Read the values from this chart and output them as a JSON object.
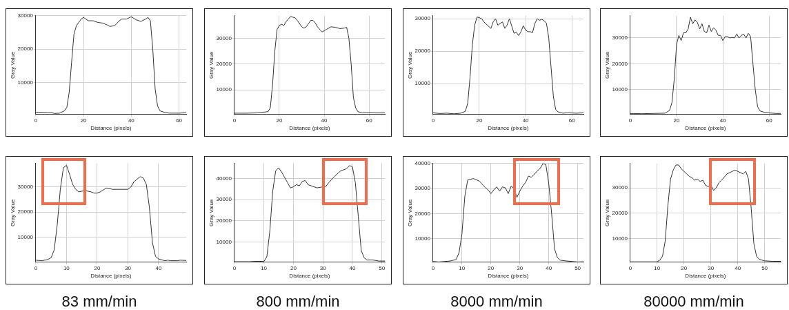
{
  "chart_data": [
    {
      "type": "line",
      "xlabel": "Distance (pixels)",
      "ylabel": "Gray Value",
      "color": "#333333",
      "marker": "none",
      "grid": true,
      "xlim": [
        0,
        63
      ],
      "ylim": [
        400,
        30000
      ],
      "xticks": [
        0,
        20,
        40,
        60
      ],
      "yticks": [
        10000,
        20000,
        30000
      ],
      "x": [
        0,
        3,
        5,
        6,
        8,
        10,
        12,
        13,
        14,
        15,
        16,
        17,
        18,
        19,
        20,
        22,
        24,
        26,
        28,
        30,
        31,
        33,
        35,
        36,
        38,
        40,
        42,
        44,
        46,
        47,
        48,
        49,
        50,
        51,
        52,
        54,
        56,
        60,
        63
      ],
      "values": [
        1000,
        1100,
        900,
        1000,
        700,
        800,
        1500,
        2500,
        7000,
        16000,
        24500,
        27000,
        28000,
        29000,
        29500,
        28500,
        28500,
        28000,
        27800,
        27200,
        26800,
        27000,
        28500,
        29000,
        29000,
        29700,
        28800,
        28300,
        29000,
        29500,
        28500,
        20000,
        8000,
        3000,
        1500,
        1000,
        800,
        800,
        900
      ]
    },
    {
      "type": "line",
      "xlabel": "Distance (pixels)",
      "ylabel": "Gray Value",
      "color": "#333333",
      "marker": "none",
      "grid": true,
      "xlim": [
        0,
        67
      ],
      "ylim": [
        400,
        38800
      ],
      "xticks": [
        0,
        20,
        40,
        60
      ],
      "yticks": [
        10000,
        20000,
        30000
      ],
      "x": [
        0,
        5,
        10,
        15,
        16,
        17,
        18,
        19,
        20,
        21,
        22,
        23,
        25,
        27,
        28,
        30,
        31,
        32,
        34,
        35,
        36,
        37,
        39,
        41,
        43,
        45,
        47,
        49,
        50,
        51,
        52,
        53,
        54,
        55,
        57,
        60,
        63,
        67
      ],
      "values": [
        900,
        900,
        1000,
        1500,
        3000,
        12000,
        25000,
        33500,
        35000,
        35500,
        35000,
        36500,
        38500,
        38000,
        37000,
        34500,
        34000,
        34500,
        37000,
        37000,
        36000,
        34500,
        32500,
        33500,
        34500,
        34300,
        33800,
        34000,
        34300,
        30000,
        20000,
        7000,
        3000,
        1500,
        1000,
        1100,
        1000,
        1000
      ]
    },
    {
      "type": "line",
      "xlabel": "Distance (pixels)",
      "ylabel": "Gray Value",
      "color": "#333333",
      "marker": "none",
      "grid": true,
      "xlim": [
        0,
        65
      ],
      "ylim": [
        500,
        30900
      ],
      "xticks": [
        0,
        20,
        40,
        60
      ],
      "yticks": [
        10000,
        20000,
        30000
      ],
      "x": [
        0,
        3,
        6,
        9,
        12,
        14,
        15,
        16,
        17,
        18,
        19,
        20,
        21,
        22,
        25,
        26,
        27,
        28,
        30,
        31,
        32,
        33,
        35,
        36,
        37,
        38,
        39,
        40,
        41,
        42,
        43,
        44,
        45,
        46,
        47,
        48,
        49,
        50,
        51,
        52,
        53,
        54,
        56,
        58,
        62,
        65
      ],
      "values": [
        1000,
        800,
        900,
        700,
        900,
        1500,
        4000,
        12000,
        22000,
        28000,
        30500,
        30300,
        30000,
        29000,
        27000,
        29000,
        30000,
        28000,
        29000,
        27000,
        28000,
        30000,
        25500,
        25800,
        24800,
        26000,
        27800,
        26500,
        26000,
        26000,
        25700,
        28500,
        30000,
        29500,
        29800,
        29300,
        28600,
        24000,
        15000,
        6000,
        2000,
        1300,
        900,
        1000,
        900,
        1000
      ]
    },
    {
      "type": "line",
      "xlabel": "Distance (pixels)",
      "ylabel": "Gray Value",
      "color": "#333333",
      "marker": "none",
      "grid": true,
      "xlim": [
        0,
        65
      ],
      "ylim": [
        400,
        38600
      ],
      "xticks": [
        0,
        20,
        40,
        60
      ],
      "yticks": [
        10000,
        20000,
        30000
      ],
      "x": [
        0,
        5,
        10,
        15,
        17,
        18,
        19,
        20,
        21,
        22,
        23,
        24,
        25,
        26,
        27,
        28,
        29,
        30,
        31,
        32,
        33,
        34,
        35,
        36,
        37,
        38,
        39,
        40,
        41,
        42,
        43,
        44,
        45,
        46,
        47,
        48,
        49,
        50,
        51,
        52,
        53,
        54,
        55,
        56,
        58,
        60,
        63,
        65
      ],
      "values": [
        800,
        700,
        800,
        900,
        2000,
        5000,
        14000,
        27500,
        31000,
        29000,
        32000,
        32000,
        33500,
        38000,
        35500,
        37000,
        36000,
        33500,
        35500,
        32500,
        32000,
        35000,
        32500,
        34000,
        33000,
        31000,
        31000,
        29000,
        30500,
        30500,
        30000,
        30200,
        30000,
        31500,
        30000,
        31000,
        31500,
        30000,
        31800,
        30500,
        20000,
        10000,
        3500,
        1800,
        1200,
        1000,
        800,
        800
      ]
    },
    {
      "type": "line",
      "xlabel": "Distance (pixels)",
      "ylabel": "Gray Value",
      "color": "#333333",
      "marker": "none",
      "grid": true,
      "xlim": [
        0,
        49
      ],
      "ylim": [
        200,
        39200
      ],
      "xticks": [
        0,
        10,
        20,
        30,
        40
      ],
      "yticks": [
        10000,
        20000,
        30000
      ],
      "annotations": [
        "83 mm/min"
      ],
      "x": [
        0,
        2,
        4,
        5,
        6,
        7,
        8,
        9,
        10,
        11,
        12,
        13,
        14,
        16,
        18,
        19,
        20,
        21,
        23,
        25,
        27,
        29,
        30,
        31,
        32,
        33,
        34,
        35,
        36,
        37,
        38,
        39,
        40,
        42,
        43,
        44,
        46,
        47,
        49
      ],
      "values": [
        1000,
        800,
        1300,
        2000,
        5000,
        15000,
        29000,
        37500,
        38500,
        35000,
        31000,
        29000,
        28000,
        28500,
        28000,
        27500,
        27500,
        28000,
        29500,
        29000,
        29000,
        29000,
        29000,
        30000,
        32000,
        33000,
        34000,
        33500,
        31000,
        22000,
        8000,
        2500,
        1500,
        800,
        1000,
        800,
        800,
        1000,
        900
      ]
    },
    {
      "type": "line",
      "xlabel": "Distance (pixels)",
      "ylabel": "Gray Value",
      "color": "#333333",
      "marker": "none",
      "grid": true,
      "xlim": [
        0,
        51
      ],
      "ylim": [
        450,
        47000
      ],
      "xticks": [
        0,
        10,
        20,
        30,
        40,
        50
      ],
      "yticks": [
        10000,
        20000,
        30000,
        40000
      ],
      "annotations": [
        "800 mm/min"
      ],
      "x": [
        0,
        5,
        8,
        10,
        11,
        12,
        13,
        14,
        15,
        16,
        17,
        18,
        19,
        20,
        21,
        22,
        23,
        24,
        25,
        26,
        28,
        30,
        31,
        32,
        34,
        36,
        38,
        39,
        40,
        41,
        42,
        43,
        44,
        45,
        47,
        49,
        51
      ],
      "values": [
        700,
        700,
        900,
        800,
        3000,
        15000,
        34000,
        43500,
        45000,
        43000,
        40500,
        38000,
        35500,
        36000,
        37000,
        36500,
        38500,
        39000,
        37000,
        36500,
        35500,
        36000,
        36200,
        38000,
        41000,
        43500,
        44500,
        46000,
        45500,
        38000,
        22000,
        6000,
        2500,
        1500,
        1500,
        1000,
        1000
      ]
    },
    {
      "type": "line",
      "xlabel": "Distance (pixels)",
      "ylabel": "Gray Value",
      "color": "#333333",
      "marker": "none",
      "grid": true,
      "xlim": [
        0,
        52
      ],
      "ylim": [
        700,
        40000
      ],
      "xticks": [
        0,
        10,
        20,
        30,
        40,
        50
      ],
      "yticks": [
        10000,
        20000,
        30000,
        40000
      ],
      "annotations": [
        "8000 mm/min"
      ],
      "x": [
        0,
        2,
        4,
        6,
        8,
        9,
        10,
        11,
        12,
        14,
        16,
        18,
        19,
        20,
        21,
        22,
        23,
        24,
        25,
        26,
        27,
        28,
        29,
        30,
        31,
        32,
        33,
        34,
        36,
        37,
        38,
        39,
        40,
        41,
        42,
        43,
        44,
        46,
        48,
        50,
        52
      ],
      "values": [
        1000,
        800,
        1000,
        1200,
        1800,
        4500,
        12000,
        27000,
        33500,
        34000,
        33000,
        30500,
        29500,
        28000,
        29500,
        30700,
        29000,
        30700,
        30300,
        28000,
        31000,
        30000,
        26500,
        29000,
        31000,
        32500,
        35000,
        34500,
        37000,
        38000,
        40000,
        39500,
        32000,
        20000,
        6000,
        2500,
        1500,
        1200,
        1000,
        800,
        900
      ]
    },
    {
      "type": "line",
      "xlabel": "Distance (pixels)",
      "ylabel": "Gray Value",
      "color": "#333333",
      "marker": "none",
      "grid": true,
      "xlim": [
        0,
        56
      ],
      "ylim": [
        650,
        39600
      ],
      "xticks": [
        0,
        10,
        20,
        30,
        40,
        50
      ],
      "yticks": [
        10000,
        20000,
        30000
      ],
      "annotations": [
        "80000 mm/min"
      ],
      "x": [
        0,
        5,
        10,
        11,
        12,
        13,
        14,
        15,
        16,
        17,
        18,
        19,
        20,
        21,
        22,
        23,
        24,
        25,
        26,
        27,
        28,
        29,
        30,
        31,
        32,
        33,
        34,
        36,
        38,
        39,
        40,
        41,
        42,
        43,
        44,
        45,
        46,
        47,
        48,
        50,
        53,
        56
      ],
      "values": [
        800,
        800,
        800,
        1500,
        3000,
        9000,
        23000,
        33500,
        37000,
        39000,
        39000,
        37500,
        36500,
        35500,
        34500,
        34000,
        33000,
        33500,
        32500,
        33000,
        31000,
        30500,
        31000,
        29000,
        30000,
        32000,
        33000,
        35500,
        36500,
        37000,
        36500,
        36000,
        35500,
        36500,
        33500,
        22000,
        8000,
        3000,
        1800,
        1200,
        1000,
        1000
      ]
    }
  ]
}
